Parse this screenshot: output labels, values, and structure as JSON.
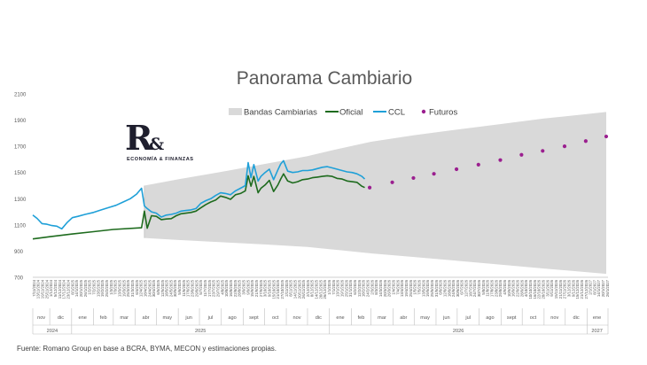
{
  "chart_data": {
    "type": "line",
    "title": "Panorama Cambiario",
    "ylim": [
      700,
      2100
    ],
    "yticks": [
      700,
      900,
      1100,
      1300,
      1500,
      1700,
      1900,
      2100
    ],
    "xlim": [
      "2024-11-07",
      "2027-01-28"
    ],
    "grid": false,
    "legend_position": "top",
    "legend": [
      {
        "label": "Bandas Cambiarias",
        "kind": "area",
        "color": "#d9d9d9"
      },
      {
        "label": "Oficial",
        "kind": "line",
        "color": "#1e6b1e"
      },
      {
        "label": "CCL",
        "kind": "line",
        "color": "#1fa0d8"
      },
      {
        "label": "Futuros",
        "kind": "marker",
        "color": "#9b1f8f"
      }
    ],
    "x_tick_labels": [
      "7/11/2024",
      "13/11/2024",
      "19/11/2024",
      "25/11/2024",
      "1/12/2024",
      "5/12/2024",
      "11/12/2024",
      "17/12/2024",
      "23/12/2024",
      "8/1/2025",
      "14/1/2025",
      "20/1/2025",
      "26/1/2025",
      "1/2/2025",
      "7/2/2025",
      "13/2/2025",
      "19/2/2025",
      "25/2/2025",
      "1/3/2025",
      "7/3/2025",
      "13/3/2025",
      "19/3/2025",
      "25/3/2025",
      "31/3/2025",
      "6/4/2025",
      "12/4/2025",
      "18/4/2025",
      "24/4/2025",
      "30/4/2025",
      "6/5/2025",
      "12/5/2025",
      "18/5/2025",
      "24/5/2025",
      "30/5/2025",
      "5/6/2025",
      "11/6/2025",
      "17/6/2025",
      "23/6/2025",
      "29/6/2025",
      "5/7/2025",
      "11/7/2025",
      "17/7/2025",
      "23/7/2025",
      "29/7/2025",
      "4/8/2025",
      "10/8/2025",
      "16/8/2025",
      "22/8/2025",
      "28/8/2025",
      "3/9/2025",
      "9/9/2025",
      "15/9/2025",
      "21/9/2025",
      "27/9/2025",
      "3/10/2025",
      "9/10/2025",
      "15/10/2025",
      "21/10/2025",
      "27/10/2025",
      "2/11/2025",
      "8/11/2025",
      "14/11/2025",
      "20/11/2025",
      "26/11/2025",
      "2/12/2025",
      "8/12/2025",
      "14/12/2025",
      "20/12/2025",
      "26/12/2025",
      "1/1/2026",
      "7/1/2026",
      "13/1/2026",
      "19/1/2026",
      "25/1/2026",
      "31/1/2026",
      "6/2/2026",
      "12/2/2026",
      "18/2/2026",
      "24/2/2026",
      "2/3/2026",
      "8/3/2026",
      "14/3/2026",
      "20/3/2026",
      "26/3/2026",
      "1/4/2026",
      "7/4/2026",
      "13/4/2026",
      "19/4/2026",
      "25/4/2026",
      "1/5/2026",
      "7/5/2026",
      "13/5/2026",
      "19/5/2026",
      "25/5/2026",
      "31/5/2026",
      "6/6/2026",
      "12/6/2026",
      "18/6/2026",
      "24/6/2026",
      "30/6/2026",
      "6/7/2026",
      "12/7/2026",
      "18/7/2026",
      "24/7/2026",
      "30/7/2026",
      "5/8/2026",
      "11/8/2026",
      "17/8/2026",
      "23/8/2026",
      "29/8/2026",
      "4/9/2026",
      "10/9/2026",
      "16/9/2026",
      "22/9/2026",
      "28/9/2026",
      "4/10/2026",
      "10/10/2026",
      "16/10/2026",
      "22/10/2026",
      "28/10/2026",
      "3/11/2026",
      "9/11/2026",
      "15/11/2026",
      "21/11/2026",
      "27/11/2026",
      "3/12/2026",
      "9/12/2026",
      "15/12/2026",
      "21/12/2026",
      "27/12/2026",
      "2/1/2027",
      "8/1/2027",
      "14/1/2027",
      "20/1/2027",
      "26/1/2027"
    ],
    "month_labels": [
      {
        "label": "nov",
        "start": "2024-11-07",
        "end": "2024-11-30"
      },
      {
        "label": "dic",
        "start": "2024-12-01",
        "end": "2024-12-31"
      },
      {
        "label": "ene",
        "start": "2025-01-01",
        "end": "2025-01-31"
      },
      {
        "label": "feb",
        "start": "2025-02-01",
        "end": "2025-02-28"
      },
      {
        "label": "mar",
        "start": "2025-03-01",
        "end": "2025-03-31"
      },
      {
        "label": "abr",
        "start": "2025-04-01",
        "end": "2025-04-30"
      },
      {
        "label": "may",
        "start": "2025-05-01",
        "end": "2025-05-31"
      },
      {
        "label": "jun",
        "start": "2025-06-01",
        "end": "2025-06-30"
      },
      {
        "label": "jul",
        "start": "2025-07-01",
        "end": "2025-07-31"
      },
      {
        "label": "ago",
        "start": "2025-08-01",
        "end": "2025-08-31"
      },
      {
        "label": "sept",
        "start": "2025-09-01",
        "end": "2025-09-30"
      },
      {
        "label": "oct",
        "start": "2025-10-01",
        "end": "2025-10-31"
      },
      {
        "label": "nov",
        "start": "2025-11-01",
        "end": "2025-11-30"
      },
      {
        "label": "dic",
        "start": "2025-12-01",
        "end": "2025-12-31"
      },
      {
        "label": "ene",
        "start": "2026-01-01",
        "end": "2026-01-31"
      },
      {
        "label": "feb",
        "start": "2026-02-01",
        "end": "2026-02-28"
      },
      {
        "label": "mar",
        "start": "2026-03-01",
        "end": "2026-03-31"
      },
      {
        "label": "abr",
        "start": "2026-04-01",
        "end": "2026-04-30"
      },
      {
        "label": "may",
        "start": "2026-05-01",
        "end": "2026-05-31"
      },
      {
        "label": "jun",
        "start": "2026-06-01",
        "end": "2026-06-30"
      },
      {
        "label": "jul",
        "start": "2026-07-01",
        "end": "2026-07-31"
      },
      {
        "label": "ago",
        "start": "2026-08-01",
        "end": "2026-08-31"
      },
      {
        "label": "sept",
        "start": "2026-09-01",
        "end": "2026-09-30"
      },
      {
        "label": "oct",
        "start": "2026-10-01",
        "end": "2026-10-31"
      },
      {
        "label": "nov",
        "start": "2026-11-01",
        "end": "2026-11-30"
      },
      {
        "label": "dic",
        "start": "2026-12-01",
        "end": "2026-12-31"
      },
      {
        "label": "ene",
        "start": "2027-01-01",
        "end": "2027-01-28"
      }
    ],
    "year_labels": [
      {
        "label": "2024",
        "start": "2024-11-07",
        "end": "2024-12-31"
      },
      {
        "label": "2025",
        "start": "2025-01-01",
        "end": "2025-12-31"
      },
      {
        "label": "2026",
        "start": "2026-01-01",
        "end": "2026-12-31"
      },
      {
        "label": "2027",
        "start": "2027-01-01",
        "end": "2027-01-28"
      }
    ],
    "series": [
      {
        "name": "Bandas Cambiarias",
        "kind": "band",
        "x": [
          "2025-04-14",
          "2025-06-01",
          "2025-08-01",
          "2025-10-01",
          "2025-12-01",
          "2026-01-01",
          "2026-03-01",
          "2026-05-01",
          "2026-07-01",
          "2026-09-01",
          "2026-11-01",
          "2027-01-28"
        ],
        "upper": [
          1400,
          1448,
          1505,
          1565,
          1625,
          1665,
          1735,
          1785,
          1828,
          1870,
          1912,
          1962
        ],
        "lower": [
          1000,
          985,
          968,
          951,
          932,
          915,
          883,
          855,
          826,
          796,
          767,
          726
        ]
      },
      {
        "name": "Oficial",
        "kind": "line",
        "x": [
          "2024-11-07",
          "2024-12-01",
          "2025-01-01",
          "2025-02-01",
          "2025-03-01",
          "2025-04-10",
          "2025-04-14",
          "2025-04-18",
          "2025-04-24",
          "2025-05-01",
          "2025-05-08",
          "2025-05-15",
          "2025-05-22",
          "2025-05-29",
          "2025-06-05",
          "2025-06-12",
          "2025-06-19",
          "2025-06-26",
          "2025-07-03",
          "2025-07-10",
          "2025-07-17",
          "2025-07-24",
          "2025-07-31",
          "2025-08-07",
          "2025-08-14",
          "2025-08-21",
          "2025-08-28",
          "2025-09-04",
          "2025-09-08",
          "2025-09-12",
          "2025-09-16",
          "2025-09-22",
          "2025-09-26",
          "2025-10-02",
          "2025-10-08",
          "2025-10-14",
          "2025-10-20",
          "2025-10-24",
          "2025-10-28",
          "2025-11-03",
          "2025-11-10",
          "2025-11-17",
          "2025-11-24",
          "2025-12-01",
          "2025-12-08",
          "2025-12-15",
          "2025-12-22",
          "2025-12-29",
          "2026-01-05",
          "2026-01-12",
          "2026-01-19",
          "2026-01-26",
          "2026-02-02",
          "2026-02-09",
          "2026-02-16",
          "2026-02-20"
        ],
        "y": [
          993,
          1010,
          1030,
          1048,
          1065,
          1078,
          1205,
          1075,
          1170,
          1165,
          1140,
          1145,
          1148,
          1170,
          1185,
          1190,
          1195,
          1205,
          1230,
          1255,
          1275,
          1290,
          1320,
          1310,
          1295,
          1330,
          1340,
          1360,
          1475,
          1395,
          1470,
          1345,
          1380,
          1405,
          1440,
          1355,
          1405,
          1450,
          1490,
          1435,
          1420,
          1430,
          1445,
          1450,
          1460,
          1465,
          1470,
          1475,
          1470,
          1455,
          1450,
          1435,
          1430,
          1425,
          1395,
          1385
        ]
      },
      {
        "name": "CCL",
        "kind": "line",
        "x": [
          "2024-11-07",
          "2024-11-13",
          "2024-11-20",
          "2024-11-27",
          "2024-12-04",
          "2024-12-11",
          "2024-12-18",
          "2024-12-26",
          "2025-01-02",
          "2025-01-10",
          "2025-01-20",
          "2025-02-01",
          "2025-02-12",
          "2025-02-24",
          "2025-03-05",
          "2025-03-15",
          "2025-03-25",
          "2025-04-03",
          "2025-04-10",
          "2025-04-14",
          "2025-04-18",
          "2025-04-24",
          "2025-05-01",
          "2025-05-08",
          "2025-05-15",
          "2025-05-22",
          "2025-05-29",
          "2025-06-05",
          "2025-06-12",
          "2025-06-19",
          "2025-06-26",
          "2025-07-03",
          "2025-07-10",
          "2025-07-17",
          "2025-07-24",
          "2025-07-31",
          "2025-08-07",
          "2025-08-14",
          "2025-08-21",
          "2025-08-28",
          "2025-09-04",
          "2025-09-08",
          "2025-09-12",
          "2025-09-16",
          "2025-09-22",
          "2025-09-26",
          "2025-10-02",
          "2025-10-08",
          "2025-10-14",
          "2025-10-20",
          "2025-10-24",
          "2025-10-28",
          "2025-11-03",
          "2025-11-10",
          "2025-11-17",
          "2025-11-24",
          "2025-12-01",
          "2025-12-08",
          "2025-12-15",
          "2025-12-22",
          "2025-12-29",
          "2026-01-05",
          "2026-01-12",
          "2026-01-19",
          "2026-01-26",
          "2026-02-02",
          "2026-02-09",
          "2026-02-16",
          "2026-02-20"
        ],
        "y": [
          1175,
          1150,
          1110,
          1105,
          1095,
          1090,
          1070,
          1120,
          1155,
          1165,
          1180,
          1195,
          1215,
          1235,
          1250,
          1275,
          1300,
          1335,
          1380,
          1245,
          1225,
          1200,
          1190,
          1160,
          1175,
          1180,
          1190,
          1205,
          1210,
          1215,
          1225,
          1265,
          1285,
          1300,
          1325,
          1345,
          1340,
          1330,
          1360,
          1380,
          1400,
          1575,
          1460,
          1560,
          1435,
          1470,
          1500,
          1525,
          1445,
          1520,
          1565,
          1590,
          1510,
          1500,
          1505,
          1515,
          1515,
          1520,
          1530,
          1540,
          1545,
          1535,
          1525,
          1515,
          1505,
          1500,
          1490,
          1470,
          1450
        ]
      },
      {
        "name": "Futuros",
        "kind": "marker",
        "x": [
          "2026-02-27",
          "2026-03-31",
          "2026-04-30",
          "2026-05-29",
          "2026-06-30",
          "2026-07-31",
          "2026-08-31",
          "2026-09-30",
          "2026-10-30",
          "2026-11-30",
          "2026-12-30",
          "2027-01-28"
        ],
        "y": [
          1385,
          1425,
          1458,
          1490,
          1525,
          1560,
          1595,
          1635,
          1665,
          1700,
          1740,
          1775
        ]
      }
    ]
  },
  "logo": {
    "mark": "R",
    "amp": "&",
    "subtitle": "ECONOMÍA & FINANZAS"
  },
  "footer": {
    "source": "Fuente: Romano Group en base a BCRA, BYMA, MECON y estimaciones propias."
  }
}
